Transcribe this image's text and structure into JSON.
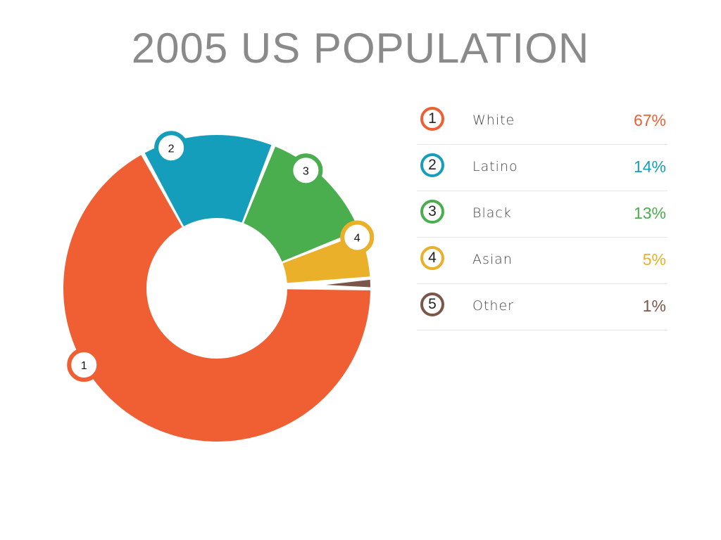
{
  "chart_data": {
    "type": "pie",
    "title": "2005 US POPULATION",
    "slices": [
      {
        "index": "1",
        "label": "White",
        "value": 67,
        "value_label": "67%",
        "color": "#F05F33"
      },
      {
        "index": "2",
        "label": "Latino",
        "value": 14,
        "value_label": "14%",
        "color": "#159EBB"
      },
      {
        "index": "3",
        "label": "Black",
        "value": 13,
        "value_label": "13%",
        "color": "#4AAD4E"
      },
      {
        "index": "4",
        "label": "Asian",
        "value": 5,
        "value_label": "5%",
        "color": "#EAB02A"
      },
      {
        "index": "5",
        "label": "Other",
        "value": 1,
        "value_label": "1%",
        "color": "#7A5748"
      }
    ],
    "legend": "right",
    "style": "donut"
  }
}
